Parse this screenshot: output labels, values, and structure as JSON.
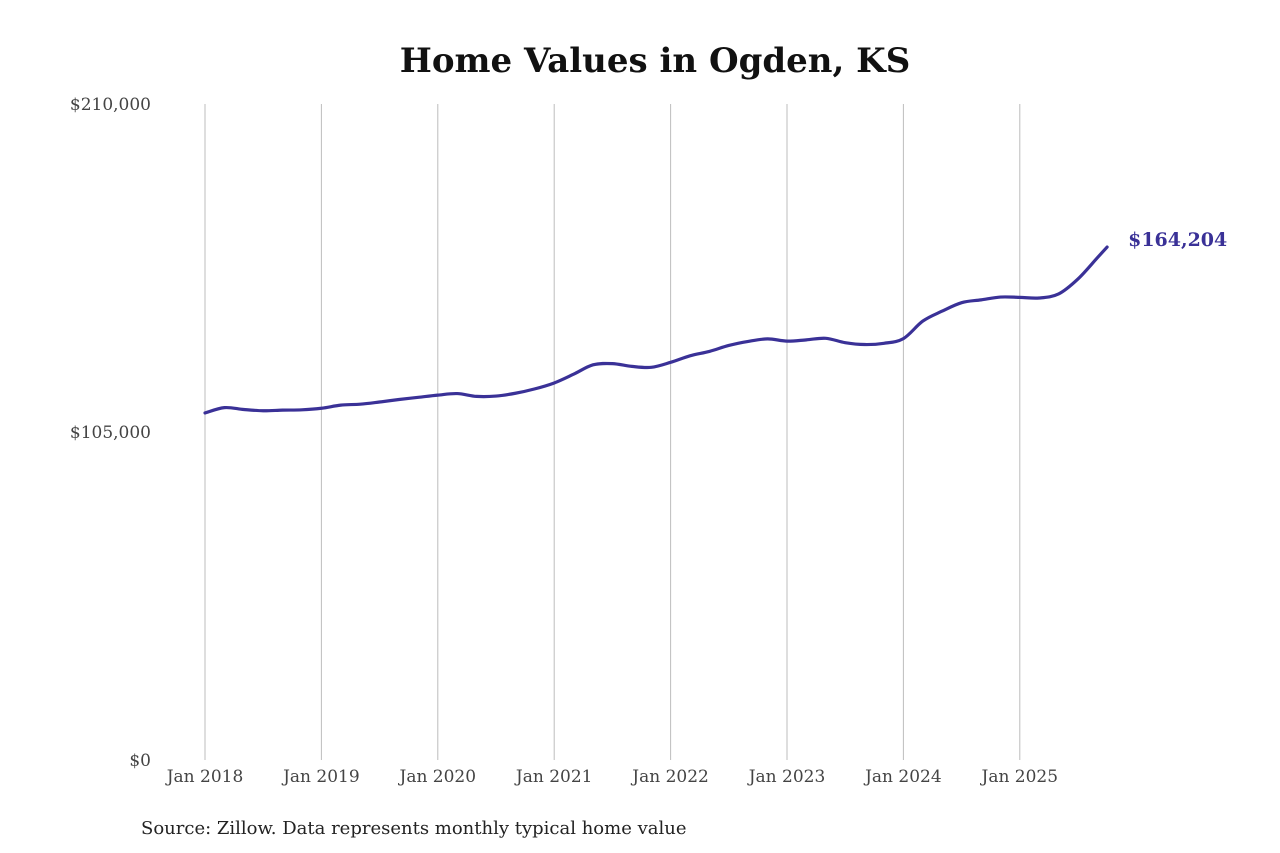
{
  "chart_data": {
    "type": "line",
    "title": "Home Values in Ogden, KS",
    "source": "Source: Zillow. Data represents monthly typical home value",
    "ylim": [
      0,
      210000
    ],
    "y_ticks": [
      {
        "value": 0,
        "label": "$0"
      },
      {
        "value": 105000,
        "label": "$105,000"
      },
      {
        "value": 210000,
        "label": "$210,000"
      }
    ],
    "x_ticks": [
      {
        "date": "2018-01",
        "label": "Jan 2018"
      },
      {
        "date": "2019-01",
        "label": "Jan 2019"
      },
      {
        "date": "2020-01",
        "label": "Jan 2020"
      },
      {
        "date": "2021-01",
        "label": "Jan 2021"
      },
      {
        "date": "2022-01",
        "label": "Jan 2022"
      },
      {
        "date": "2023-01",
        "label": "Jan 2023"
      },
      {
        "date": "2024-01",
        "label": "Jan 2024"
      },
      {
        "date": "2025-01",
        "label": "Jan 2025"
      }
    ],
    "xlim": [
      "2018-01",
      "2025-10"
    ],
    "grid": "vertical",
    "line_color": "#3a3197",
    "end_label": "$164,204",
    "series": [
      {
        "color": "#3a3197",
        "points": [
          [
            "2018-01",
            111100
          ],
          [
            "2018-03",
            112800
          ],
          [
            "2018-05",
            112200
          ],
          [
            "2018-07",
            111800
          ],
          [
            "2018-09",
            112000
          ],
          [
            "2018-11",
            112100
          ],
          [
            "2019-01",
            112600
          ],
          [
            "2019-03",
            113600
          ],
          [
            "2019-05",
            113900
          ],
          [
            "2019-07",
            114600
          ],
          [
            "2019-09",
            115400
          ],
          [
            "2019-11",
            116100
          ],
          [
            "2020-01",
            116800
          ],
          [
            "2020-03",
            117300
          ],
          [
            "2020-05",
            116400
          ],
          [
            "2020-07",
            116500
          ],
          [
            "2020-09",
            117400
          ],
          [
            "2020-11",
            118800
          ],
          [
            "2021-01",
            120700
          ],
          [
            "2021-03",
            123500
          ],
          [
            "2021-05",
            126500
          ],
          [
            "2021-07",
            126900
          ],
          [
            "2021-09",
            126000
          ],
          [
            "2021-11",
            125700
          ],
          [
            "2022-01",
            127300
          ],
          [
            "2022-03",
            129400
          ],
          [
            "2022-05",
            130800
          ],
          [
            "2022-07",
            132700
          ],
          [
            "2022-09",
            134000
          ],
          [
            "2022-11",
            134800
          ],
          [
            "2023-01",
            134100
          ],
          [
            "2023-03",
            134500
          ],
          [
            "2023-05",
            135000
          ],
          [
            "2023-07",
            133600
          ],
          [
            "2023-09",
            133000
          ],
          [
            "2023-11",
            133400
          ],
          [
            "2024-01",
            134900
          ],
          [
            "2024-03",
            140500
          ],
          [
            "2024-05",
            143700
          ],
          [
            "2024-07",
            146400
          ],
          [
            "2024-09",
            147300
          ],
          [
            "2024-11",
            148200
          ],
          [
            "2025-01",
            148100
          ],
          [
            "2025-03",
            147900
          ],
          [
            "2025-05",
            149200
          ],
          [
            "2025-07",
            154000
          ],
          [
            "2025-09",
            160800
          ],
          [
            "2025-10",
            164204
          ]
        ]
      }
    ]
  }
}
